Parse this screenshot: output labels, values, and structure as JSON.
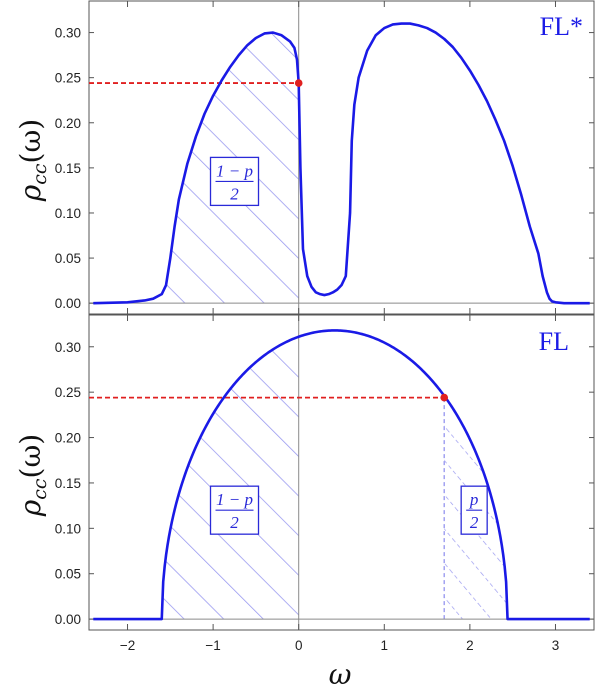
{
  "chart_data": [
    {
      "type": "line",
      "panel_label": "FL*",
      "ylabel": "ρ",
      "ylabel_sub": "cc",
      "ylabel_arg": "(ω)",
      "xlim": [
        -2.45,
        3.45
      ],
      "ylim": [
        -0.012,
        0.335
      ],
      "y_ticks": [
        "0.00",
        "0.05",
        "0.10",
        "0.15",
        "0.20",
        "0.25",
        "0.30"
      ],
      "y_tick_values": [
        0.0,
        0.05,
        0.1,
        0.15,
        0.2,
        0.25,
        0.3
      ],
      "series": [
        {
          "color": "#1a1ae6",
          "x": [
            -2.4,
            -2.0,
            -1.8,
            -1.7,
            -1.6,
            -1.55,
            -1.5,
            -1.45,
            -1.4,
            -1.3,
            -1.2,
            -1.1,
            -1.0,
            -0.9,
            -0.8,
            -0.7,
            -0.6,
            -0.5,
            -0.4,
            -0.3,
            -0.2,
            -0.1,
            -0.05,
            -0.02,
            0.0,
            0.02,
            0.05,
            0.1,
            0.15,
            0.2,
            0.25,
            0.3,
            0.35,
            0.4,
            0.45,
            0.5,
            0.55,
            0.6,
            0.62,
            0.65,
            0.7,
            0.8,
            0.9,
            1.0,
            1.1,
            1.2,
            1.3,
            1.4,
            1.5,
            1.6,
            1.7,
            1.8,
            1.9,
            2.0,
            2.1,
            2.2,
            2.3,
            2.4,
            2.5,
            2.6,
            2.7,
            2.8,
            2.85,
            2.9,
            2.93,
            2.96,
            3.0,
            3.1,
            3.4
          ],
          "y": [
            0.0,
            0.001,
            0.003,
            0.005,
            0.01,
            0.02,
            0.05,
            0.085,
            0.115,
            0.155,
            0.185,
            0.21,
            0.23,
            0.247,
            0.262,
            0.275,
            0.286,
            0.294,
            0.299,
            0.3,
            0.297,
            0.29,
            0.283,
            0.27,
            0.244,
            0.15,
            0.06,
            0.03,
            0.018,
            0.012,
            0.01,
            0.009,
            0.01,
            0.012,
            0.015,
            0.02,
            0.03,
            0.1,
            0.18,
            0.22,
            0.25,
            0.28,
            0.297,
            0.305,
            0.309,
            0.31,
            0.31,
            0.308,
            0.305,
            0.3,
            0.293,
            0.284,
            0.272,
            0.258,
            0.242,
            0.224,
            0.203,
            0.18,
            0.152,
            0.12,
            0.085,
            0.055,
            0.03,
            0.012,
            0.005,
            0.002,
            0.001,
            0.0,
            0.0
          ]
        }
      ],
      "marker": {
        "x": 0.0,
        "y": 0.244,
        "color": "#e02020"
      },
      "hatch_region": [
        -1.6,
        0.0
      ],
      "box_label": {
        "numerator": "1 − p",
        "denominator": "2",
        "x": -0.75,
        "y": 0.135
      }
    },
    {
      "type": "line",
      "panel_label": "FL",
      "ylabel": "ρ",
      "ylabel_sub": "cc",
      "ylabel_arg": "(ω)",
      "xlabel": "ω",
      "xlim": [
        -2.45,
        3.45
      ],
      "ylim": [
        -0.012,
        0.335
      ],
      "x_ticks": [
        "−2",
        "−1",
        "0",
        "1",
        "2",
        "3"
      ],
      "x_tick_values": [
        -2,
        -1,
        0,
        1,
        2,
        3
      ],
      "y_ticks": [
        "0.00",
        "0.05",
        "0.10",
        "0.15",
        "0.20",
        "0.25",
        "0.30"
      ],
      "y_tick_values": [
        0.0,
        0.05,
        0.1,
        0.15,
        0.2,
        0.25,
        0.3
      ],
      "series": [
        {
          "color": "#1a1ae6",
          "semicircle": {
            "center": 0.42,
            "radius": 2.02,
            "height": 0.318
          },
          "x_range": [
            -2.4,
            3.4
          ]
        }
      ],
      "marker": {
        "x": 1.7,
        "y": 0.244,
        "color": "#e02020"
      },
      "hatch_region": [
        -1.6,
        0.0
      ],
      "hatch_region_2": [
        1.7,
        2.44
      ],
      "box_label": {
        "numerator": "1 − p",
        "denominator": "2",
        "x": -0.75,
        "y": 0.12
      },
      "box_label_2": {
        "numerator": "p",
        "denominator": "2",
        "x": 2.05,
        "y": 0.12
      }
    }
  ]
}
